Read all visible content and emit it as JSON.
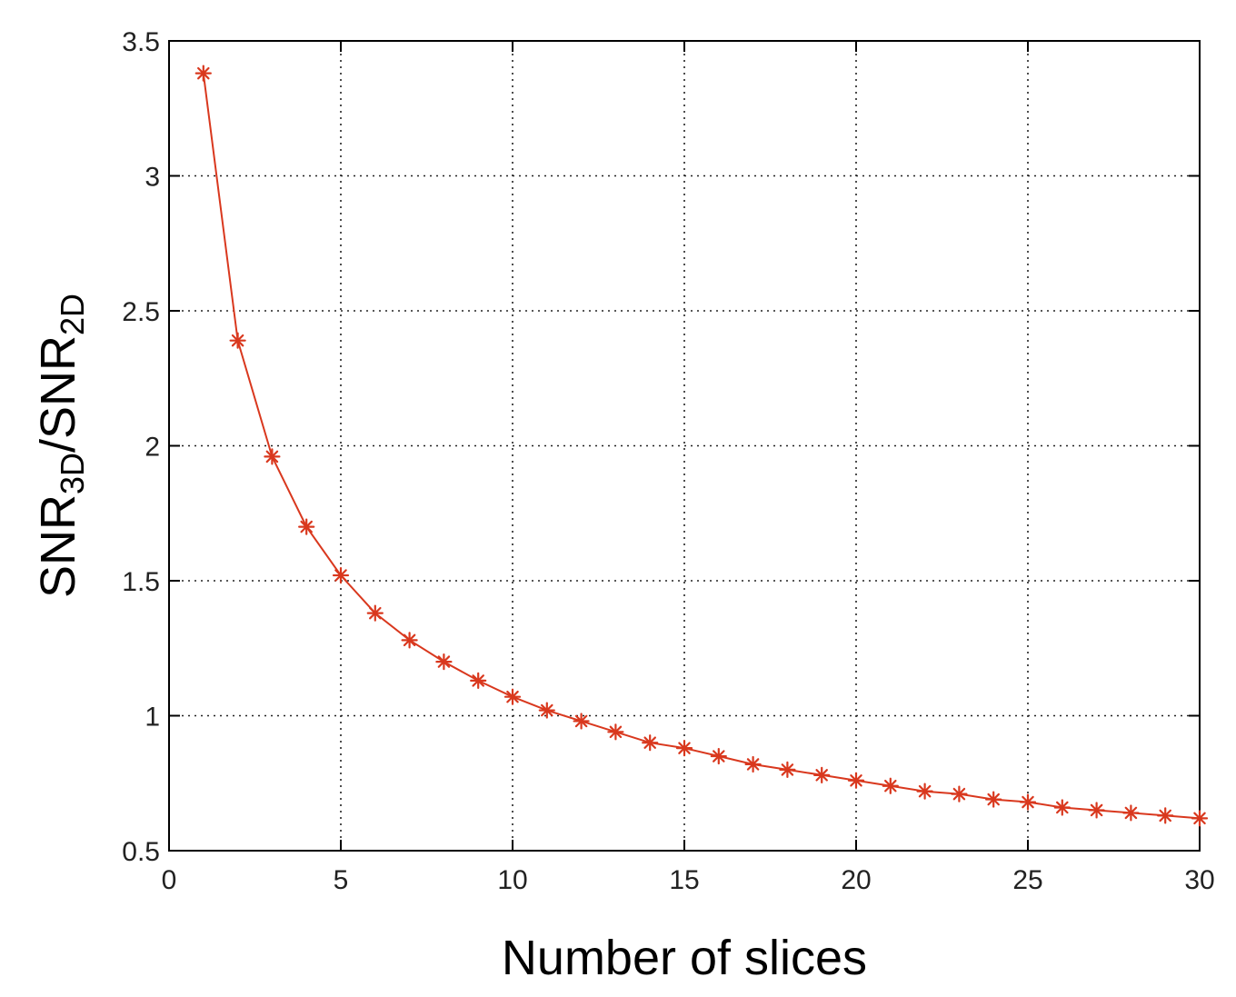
{
  "chart_data": {
    "type": "line",
    "title": "",
    "xlabel": "Number of slices",
    "ylabel": {
      "base1": "SNR",
      "sub1": "3D",
      "mid": "/SNR",
      "sub2": "2D"
    },
    "xlim": [
      0,
      30
    ],
    "ylim": [
      0.5,
      3.5
    ],
    "xticks": [
      0,
      5,
      10,
      15,
      20,
      25,
      30
    ],
    "yticks": [
      0.5,
      1,
      1.5,
      2,
      2.5,
      3,
      3.5
    ],
    "xtick_labels": [
      "0",
      "5",
      "10",
      "15",
      "20",
      "25",
      "30"
    ],
    "ytick_labels": [
      "0.5",
      "1",
      "1.5",
      "2",
      "2.5",
      "3",
      "3.5"
    ],
    "grid": true,
    "marker": "asterisk",
    "color": "#d9381e",
    "series": [
      {
        "x": [
          1,
          2,
          3,
          4,
          5,
          6,
          7,
          8,
          9,
          10,
          11,
          12,
          13,
          14,
          15,
          16,
          17,
          18,
          19,
          20,
          21,
          22,
          23,
          24,
          25,
          26,
          27,
          28,
          29,
          30
        ],
        "values": [
          3.38,
          2.39,
          1.96,
          1.7,
          1.52,
          1.38,
          1.28,
          1.2,
          1.13,
          1.07,
          1.02,
          0.98,
          0.94,
          0.9,
          0.88,
          0.85,
          0.82,
          0.8,
          0.78,
          0.76,
          0.74,
          0.72,
          0.71,
          0.69,
          0.68,
          0.66,
          0.65,
          0.64,
          0.63,
          0.62
        ]
      }
    ]
  }
}
